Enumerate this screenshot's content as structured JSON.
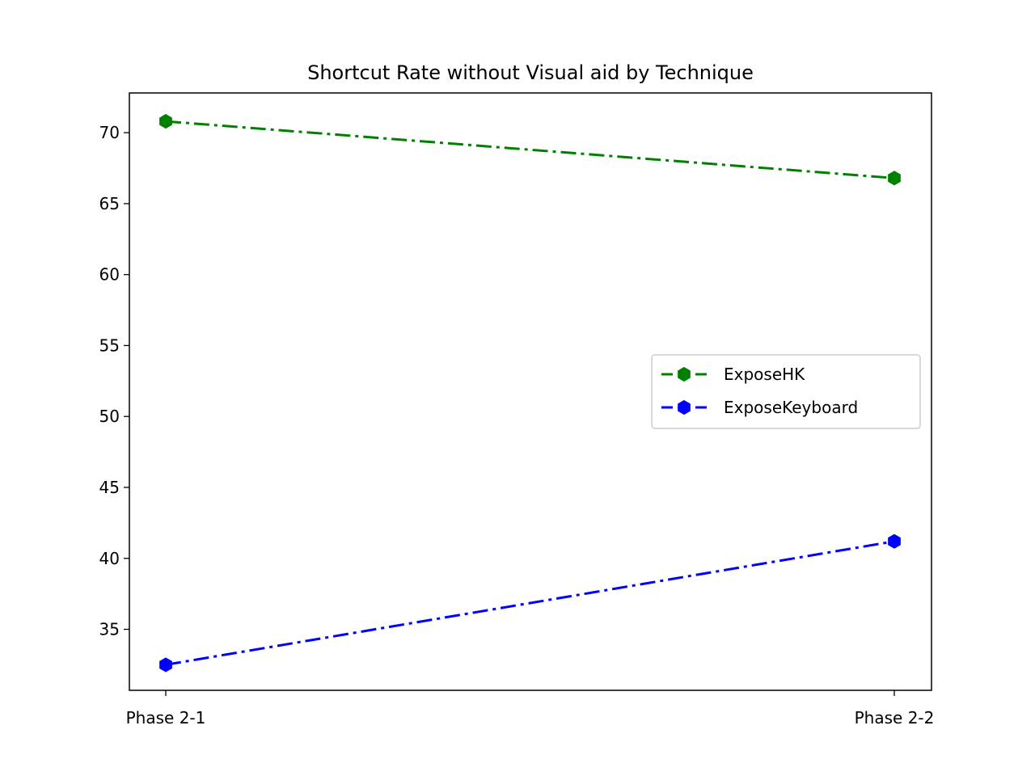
{
  "chart_data": {
    "type": "line",
    "title": "Shortcut Rate without Visual aid by Technique",
    "xlabel": "",
    "ylabel": "",
    "categories": [
      "Phase 2-1",
      "Phase 2-2"
    ],
    "ylim": [
      30.7,
      72.8
    ],
    "yticks": [
      "35",
      "40",
      "45",
      "50",
      "55",
      "60",
      "65",
      "70"
    ],
    "grid": false,
    "legend_position": "center-right",
    "series": [
      {
        "name": "ExposeHK",
        "values": [
          70.8,
          66.8
        ],
        "color": "#008000",
        "marker": "hexagon",
        "line_style": "dash-dot"
      },
      {
        "name": "ExposeKeyboard",
        "values": [
          32.5,
          41.2
        ],
        "color": "#0000ff",
        "marker": "hexagon",
        "line_style": "dash-dot"
      }
    ]
  }
}
